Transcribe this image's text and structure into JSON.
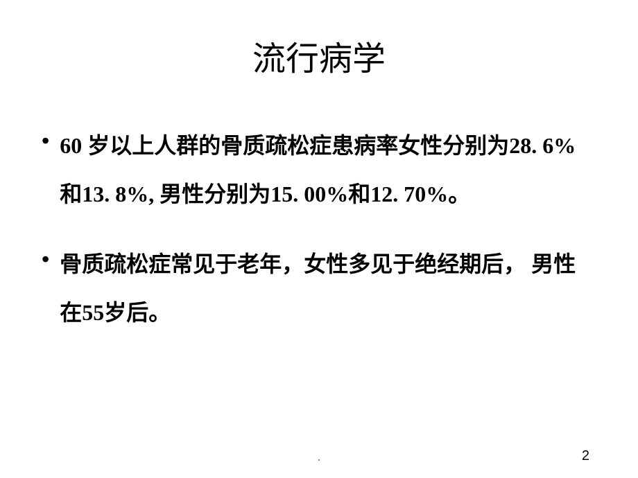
{
  "slide": {
    "title": "流行病学",
    "bullets": [
      {
        "marker": "•",
        "text": "60 岁以上人群的骨质疏松症患病率女性分别为28. 6% 和13. 8%, 男性分别为15. 00%和12. 70%。"
      },
      {
        "marker": "•",
        "text": "骨质疏松症常见于老年，女性多见于绝经期后， 男性在55岁后。"
      }
    ],
    "page_number": "2",
    "footer_mark": "."
  },
  "style": {
    "background_color": "#ffffff",
    "title_fontsize": 48,
    "title_color": "#000000",
    "body_fontsize": 32,
    "body_color": "#000000",
    "body_fontweight": "bold",
    "page_number_fontsize": 20,
    "page_number_color": "#000000",
    "footer_color": "#7a7a7a"
  }
}
